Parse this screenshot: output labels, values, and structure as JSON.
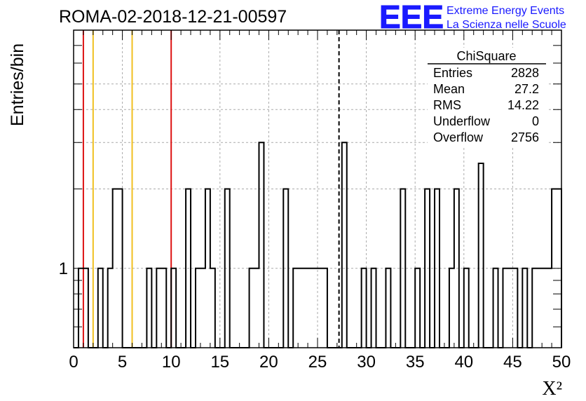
{
  "title": "ROMA-02-2018-12-21-00597",
  "logo": {
    "mark": "EEE",
    "line1": "Extreme Energy Events",
    "line2": "La Scienza nelle Scuole",
    "color": "#1a1aff"
  },
  "stats": {
    "header": "ChiSquare",
    "rows": [
      {
        "label": "Entries",
        "value": "2828"
      },
      {
        "label": "Mean",
        "value": "27.2"
      },
      {
        "label": "RMS",
        "value": "14.22"
      },
      {
        "label": "Underflow",
        "value": "0"
      },
      {
        "label": "Overflow",
        "value": "2756"
      }
    ]
  },
  "chart_data": {
    "type": "bar",
    "histogram": "step",
    "xlabel": "X²",
    "ylabel": "Entries/bin",
    "xlim": [
      0,
      50
    ],
    "ylog": true,
    "ylim": [
      0.5,
      8
    ],
    "bin_width": 0.5,
    "grid": true,
    "x_ticks": [
      "0",
      "5",
      "10",
      "15",
      "20",
      "25",
      "30",
      "35",
      "40",
      "45",
      "50"
    ],
    "y_ticks": [
      "1"
    ],
    "bins": [
      {
        "x": 0.5,
        "y": 1
      },
      {
        "x": 1.0,
        "y": 1
      },
      {
        "x": 2.5,
        "y": 1
      },
      {
        "x": 3.5,
        "y": 1
      },
      {
        "x": 4.0,
        "y": 2
      },
      {
        "x": 4.5,
        "y": 2
      },
      {
        "x": 7.5,
        "y": 1
      },
      {
        "x": 8.5,
        "y": 1
      },
      {
        "x": 9.0,
        "y": 1
      },
      {
        "x": 10.0,
        "y": 1
      },
      {
        "x": 11.5,
        "y": 2
      },
      {
        "x": 12.5,
        "y": 1
      },
      {
        "x": 13.0,
        "y": 1
      },
      {
        "x": 13.5,
        "y": 2
      },
      {
        "x": 14.0,
        "y": 1
      },
      {
        "x": 15.5,
        "y": 2
      },
      {
        "x": 18.0,
        "y": 1
      },
      {
        "x": 18.5,
        "y": 1
      },
      {
        "x": 19.0,
        "y": 3
      },
      {
        "x": 21.5,
        "y": 2
      },
      {
        "x": 22.5,
        "y": 1
      },
      {
        "x": 23.0,
        "y": 1
      },
      {
        "x": 23.5,
        "y": 1
      },
      {
        "x": 24.0,
        "y": 1
      },
      {
        "x": 24.5,
        "y": 1
      },
      {
        "x": 25.0,
        "y": 1
      },
      {
        "x": 25.5,
        "y": 1
      },
      {
        "x": 27.5,
        "y": 3
      },
      {
        "x": 29.5,
        "y": 1
      },
      {
        "x": 30.5,
        "y": 1
      },
      {
        "x": 32.0,
        "y": 1
      },
      {
        "x": 33.5,
        "y": 2
      },
      {
        "x": 35.0,
        "y": 1
      },
      {
        "x": 36.0,
        "y": 2
      },
      {
        "x": 37.0,
        "y": 2
      },
      {
        "x": 38.5,
        "y": 1
      },
      {
        "x": 39.0,
        "y": 2
      },
      {
        "x": 40.0,
        "y": 1
      },
      {
        "x": 41.5,
        "y": 2.5
      },
      {
        "x": 43.0,
        "y": 1
      },
      {
        "x": 44.0,
        "y": 1
      },
      {
        "x": 44.5,
        "y": 1
      },
      {
        "x": 45.0,
        "y": 1
      },
      {
        "x": 46.0,
        "y": 1
      },
      {
        "x": 47.0,
        "y": 1
      },
      {
        "x": 47.5,
        "y": 1
      },
      {
        "x": 48.0,
        "y": 1
      },
      {
        "x": 48.5,
        "y": 1
      },
      {
        "x": 49.0,
        "y": 2
      },
      {
        "x": 49.5,
        "y": 2
      }
    ],
    "vlines": [
      {
        "x": 1,
        "color": "#dd1111",
        "style": "solid"
      },
      {
        "x": 2,
        "color": "#f0c020",
        "style": "solid"
      },
      {
        "x": 6,
        "color": "#f0c020",
        "style": "solid"
      },
      {
        "x": 10,
        "color": "#dd1111",
        "style": "solid"
      },
      {
        "x": 27.2,
        "color": "#000000",
        "style": "dashed"
      }
    ]
  }
}
